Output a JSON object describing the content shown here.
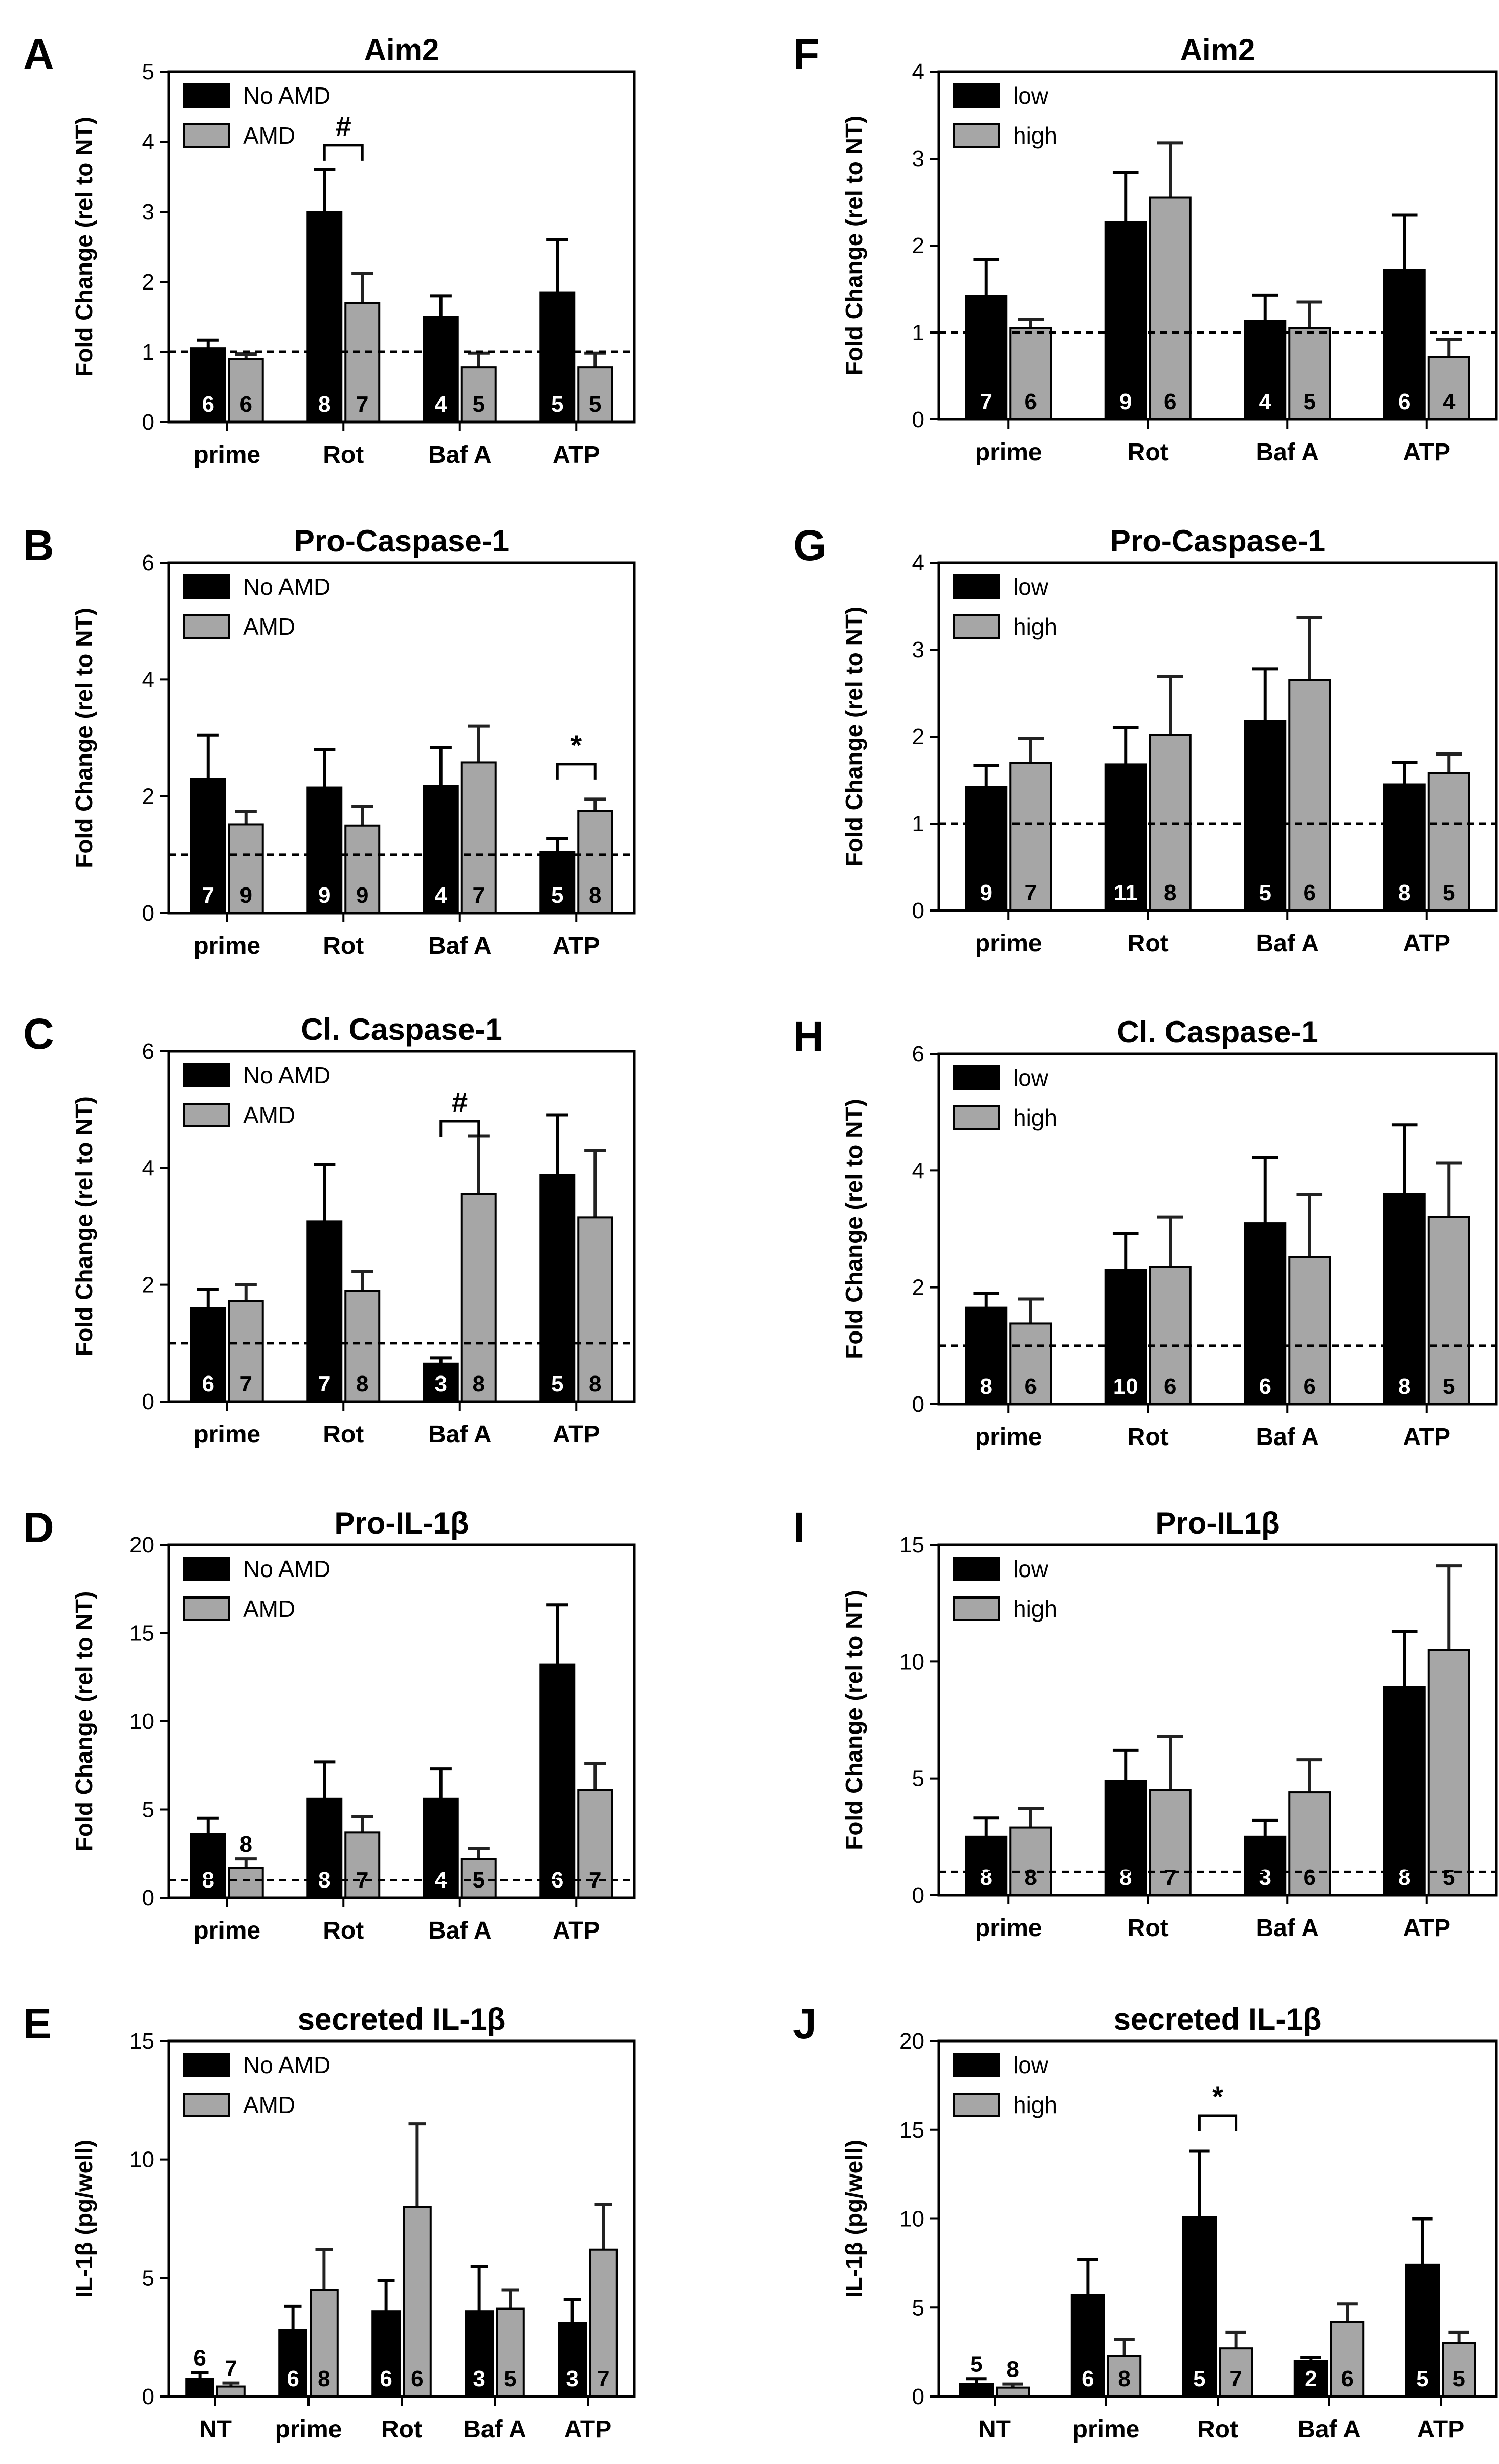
{
  "colors": {
    "dark": "#000000",
    "light": "#a6a6a6"
  },
  "panels": [
    {
      "letter": "A",
      "chart_data": {
        "type": "bar",
        "title": "Aim2",
        "ylabel": "Fold Change (rel to NT)",
        "ylim": [
          0,
          5
        ],
        "yticks": [
          "0",
          "1",
          "2",
          "3",
          "4",
          "5"
        ],
        "baseline": 1,
        "categories": [
          "prime",
          "Rot",
          "Baf A",
          "ATP"
        ],
        "series": [
          {
            "name": "No AMD",
            "values": [
              1.05,
              3.0,
              1.5,
              1.85
            ],
            "errors": [
              0.12,
              0.6,
              0.3,
              0.75
            ],
            "n": [
              "6",
              "8",
              "4",
              "5"
            ]
          },
          {
            "name": "AMD",
            "values": [
              0.9,
              1.7,
              0.78,
              0.78
            ],
            "errors": [
              0.07,
              0.42,
              0.2,
              0.2
            ],
            "n": [
              "6",
              "7",
              "5",
              "5"
            ]
          }
        ],
        "annotations": [
          {
            "text": "#",
            "category": 1,
            "y": 3.95
          }
        ]
      }
    },
    {
      "letter": "F",
      "chart_data": {
        "type": "bar",
        "title": "Aim2",
        "ylabel": "Fold Change (rel to NT)",
        "ylim": [
          0,
          4
        ],
        "yticks": [
          "0",
          "1",
          "2",
          "3",
          "4"
        ],
        "baseline": 1,
        "categories": [
          "prime",
          "Rot",
          "Baf A",
          "ATP"
        ],
        "series": [
          {
            "name": "low",
            "values": [
              1.42,
              2.27,
              1.13,
              1.72
            ],
            "errors": [
              0.42,
              0.57,
              0.3,
              0.63
            ],
            "n": [
              "7",
              "9",
              "4",
              "6"
            ]
          },
          {
            "name": "high",
            "values": [
              1.05,
              2.55,
              1.05,
              0.72
            ],
            "errors": [
              0.1,
              0.63,
              0.3,
              0.2
            ],
            "n": [
              "6",
              "6",
              "5",
              "4"
            ]
          }
        ]
      }
    },
    {
      "letter": "B",
      "chart_data": {
        "type": "bar",
        "title": "Pro-Caspase-1",
        "ylabel": "Fold Change (rel to NT)",
        "ylim": [
          0,
          6
        ],
        "yticks": [
          "0",
          "2",
          "4",
          "6"
        ],
        "baseline": 1,
        "categories": [
          "prime",
          "Rot",
          "Baf A",
          "ATP"
        ],
        "series": [
          {
            "name": "No AMD",
            "values": [
              2.3,
              2.15,
              2.18,
              1.05
            ],
            "errors": [
              0.75,
              0.65,
              0.65,
              0.22
            ],
            "n": [
              "7",
              "9",
              "4",
              "5"
            ]
          },
          {
            "name": "AMD",
            "values": [
              1.52,
              1.5,
              2.58,
              1.75
            ],
            "errors": [
              0.22,
              0.33,
              0.62,
              0.2
            ],
            "n": [
              "9",
              "9",
              "7",
              "8"
            ]
          }
        ],
        "annotations": [
          {
            "text": "*",
            "category": 3,
            "y": 2.55
          }
        ]
      }
    },
    {
      "letter": "G",
      "chart_data": {
        "type": "bar",
        "title": "Pro-Caspase-1",
        "ylabel": "Fold Change (rel to NT)",
        "ylim": [
          0,
          4
        ],
        "yticks": [
          "0",
          "1",
          "2",
          "3",
          "4"
        ],
        "baseline": 1,
        "categories": [
          "prime",
          "Rot",
          "Baf A",
          "ATP"
        ],
        "series": [
          {
            "name": "low",
            "values": [
              1.42,
              1.68,
              2.18,
              1.45
            ],
            "errors": [
              0.25,
              0.42,
              0.6,
              0.25
            ],
            "n": [
              "9",
              "11",
              "5",
              "8"
            ]
          },
          {
            "name": "high",
            "values": [
              1.7,
              2.02,
              2.65,
              1.58
            ],
            "errors": [
              0.28,
              0.67,
              0.72,
              0.22
            ],
            "n": [
              "7",
              "8",
              "6",
              "5"
            ]
          }
        ]
      }
    },
    {
      "letter": "C",
      "chart_data": {
        "type": "bar",
        "title": "Cl. Caspase-1",
        "ylabel": "Fold Change (rel to NT)",
        "ylim": [
          0,
          6
        ],
        "yticks": [
          "0",
          "2",
          "4",
          "6"
        ],
        "baseline": 1,
        "categories": [
          "prime",
          "Rot",
          "Baf A",
          "ATP"
        ],
        "series": [
          {
            "name": "No AMD",
            "values": [
              1.6,
              3.08,
              0.65,
              3.88
            ],
            "errors": [
              0.32,
              0.98,
              0.1,
              1.03
            ],
            "n": [
              "6",
              "7",
              "3",
              "5"
            ]
          },
          {
            "name": "AMD",
            "values": [
              1.72,
              1.9,
              3.55,
              3.15
            ],
            "errors": [
              0.28,
              0.33,
              1.0,
              1.15
            ],
            "n": [
              "7",
              "8",
              "8",
              "8"
            ]
          }
        ],
        "annotations": [
          {
            "text": "#",
            "category": 2,
            "y": 4.8
          }
        ]
      }
    },
    {
      "letter": "H",
      "chart_data": {
        "type": "bar",
        "title": "Cl. Caspase-1",
        "ylabel": "Fold Change (rel to NT)",
        "ylim": [
          0,
          6
        ],
        "yticks": [
          "0",
          "2",
          "4",
          "6"
        ],
        "baseline": 1,
        "categories": [
          "prime",
          "Rot",
          "Baf A",
          "ATP"
        ],
        "series": [
          {
            "name": "low",
            "values": [
              1.65,
              2.3,
              3.1,
              3.6
            ],
            "errors": [
              0.25,
              0.62,
              1.13,
              1.18
            ],
            "n": [
              "8",
              "10",
              "6",
              "8"
            ]
          },
          {
            "name": "high",
            "values": [
              1.38,
              2.35,
              2.52,
              3.2
            ],
            "errors": [
              0.42,
              0.85,
              1.07,
              0.93
            ],
            "n": [
              "6",
              "6",
              "6",
              "5"
            ]
          }
        ]
      }
    },
    {
      "letter": "D",
      "chart_data": {
        "type": "bar",
        "title": "Pro-IL-1β",
        "ylabel": "Fold Change (rel to NT)",
        "ylim": [
          0,
          20
        ],
        "yticks": [
          "0",
          "5",
          "10",
          "15",
          "20"
        ],
        "baseline": 1,
        "categories": [
          "prime",
          "Rot",
          "Baf A",
          "ATP"
        ],
        "series": [
          {
            "name": "No AMD",
            "values": [
              3.6,
              5.6,
              5.6,
              13.2
            ],
            "errors": [
              0.9,
              2.1,
              1.7,
              3.4
            ],
            "n": [
              "8",
              "8",
              "4",
              "6"
            ]
          },
          {
            "name": "AMD",
            "values": [
              1.7,
              3.7,
              2.2,
              6.1
            ],
            "errors": [
              0.5,
              0.9,
              0.6,
              1.5
            ],
            "n": [
              "8",
              "7",
              "5",
              "7"
            ]
          }
        ]
      }
    },
    {
      "letter": "I",
      "chart_data": {
        "type": "bar",
        "title": "Pro-IL1β",
        "ylabel": "Fold Change (rel to NT)",
        "ylim": [
          0,
          15
        ],
        "yticks": [
          "0",
          "5",
          "10",
          "15"
        ],
        "baseline": 1,
        "categories": [
          "prime",
          "Rot",
          "Baf A",
          "ATP"
        ],
        "series": [
          {
            "name": "low",
            "values": [
              2.5,
              4.9,
              2.5,
              8.9
            ],
            "errors": [
              0.8,
              1.3,
              0.7,
              2.4
            ],
            "n": [
              "8",
              "8",
              "3",
              "8"
            ]
          },
          {
            "name": "high",
            "values": [
              2.9,
              4.5,
              4.4,
              10.5
            ],
            "errors": [
              0.8,
              2.3,
              1.4,
              3.6
            ],
            "n": [
              "8",
              "7",
              "6",
              "5"
            ]
          }
        ]
      }
    },
    {
      "letter": "E",
      "chart_data": {
        "type": "bar",
        "title": "secreted IL-1β",
        "ylabel": "IL-1β (pg/well)",
        "ylim": [
          0,
          15
        ],
        "yticks": [
          "0",
          "5",
          "10",
          "15"
        ],
        "categories": [
          "NT",
          "prime",
          "Rot",
          "Baf A",
          "ATP"
        ],
        "series": [
          {
            "name": "No AMD",
            "values": [
              0.75,
              2.8,
              3.6,
              3.6,
              3.1
            ],
            "errors": [
              0.25,
              1.0,
              1.3,
              1.9,
              1.0
            ],
            "n": [
              "6",
              "6",
              "6",
              "3",
              "3"
            ]
          },
          {
            "name": "AMD",
            "values": [
              0.42,
              4.5,
              8.0,
              3.7,
              6.2
            ],
            "errors": [
              0.15,
              1.7,
              3.5,
              0.8,
              1.9
            ],
            "n": [
              "7",
              "8",
              "6",
              "5",
              "7"
            ]
          }
        ]
      }
    },
    {
      "letter": "J",
      "chart_data": {
        "type": "bar",
        "title": "secreted IL-1β",
        "ylabel": "IL-1β (pg/well)",
        "ylim": [
          0,
          20
        ],
        "yticks": [
          "0",
          "5",
          "10",
          "15",
          "20"
        ],
        "categories": [
          "NT",
          "prime",
          "Rot",
          "Baf A",
          "ATP"
        ],
        "series": [
          {
            "name": "low",
            "values": [
              0.7,
              5.7,
              10.1,
              2.0,
              7.4
            ],
            "errors": [
              0.3,
              2.0,
              3.7,
              0.2,
              2.6
            ],
            "n": [
              "5",
              "6",
              "5",
              "2",
              "5"
            ]
          },
          {
            "name": "high",
            "values": [
              0.5,
              2.3,
              2.7,
              4.2,
              3.0
            ],
            "errors": [
              0.2,
              0.9,
              0.9,
              1.0,
              0.6
            ],
            "n": [
              "8",
              "8",
              "7",
              "6",
              "5"
            ]
          }
        ],
        "annotations": [
          {
            "text": "*",
            "category": 2,
            "y": 15.8
          }
        ]
      }
    }
  ]
}
